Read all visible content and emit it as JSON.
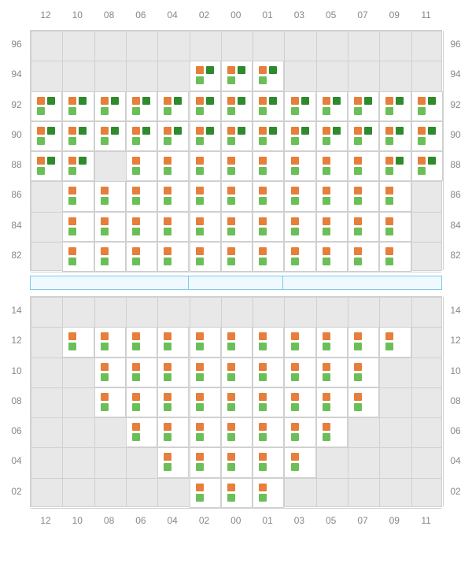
{
  "layout": {
    "cell_w": 40.3,
    "cell_h": 38.25,
    "cols": 13,
    "rows": 8,
    "col_labels": [
      "12",
      "10",
      "08",
      "06",
      "04",
      "02",
      "00",
      "01",
      "03",
      "05",
      "07",
      "09",
      "11"
    ],
    "top_row_labels": [
      "96",
      "94",
      "92",
      "90",
      "88",
      "86",
      "84",
      "82"
    ],
    "bot_row_labels": [
      "14",
      "12",
      "10",
      "08",
      "06",
      "04",
      "02"
    ],
    "bot_rows": 7
  },
  "colors": {
    "orange": "#e67e3c",
    "green_dark": "#2d8a2d",
    "green_light": "#6bbf59",
    "cell_bg": "#ffffff",
    "grid_bg": "#e8e8e8",
    "grid_line": "#d0d0d0",
    "label": "#888888",
    "midbar_bg": "#f0f9ff",
    "midbar_border": "#7dc9ed"
  },
  "midbar_splits": [
    0.385,
    0.615
  ],
  "top_grid": [
    [
      "-",
      "-",
      "-",
      "-",
      "-",
      "-",
      "-",
      "-",
      "-",
      "-",
      "-",
      "-",
      "-"
    ],
    [
      "-",
      "-",
      "-",
      "-",
      "-",
      "B",
      "B",
      "B",
      "-",
      "-",
      "-",
      "-",
      "-"
    ],
    [
      "B",
      "B",
      "B",
      "B",
      "B",
      "B",
      "B",
      "B",
      "B",
      "B",
      "B",
      "B",
      "B"
    ],
    [
      "B",
      "B",
      "B",
      "B",
      "B",
      "B",
      "B",
      "B",
      "B",
      "B",
      "B",
      "B",
      "B"
    ],
    [
      "B",
      "B",
      "-",
      "A",
      "A",
      "A",
      "A",
      "A",
      "A",
      "A",
      "A",
      "B",
      "B"
    ],
    [
      "-",
      "A",
      "A",
      "A",
      "A",
      "A",
      "A",
      "A",
      "A",
      "A",
      "A",
      "A",
      "-"
    ],
    [
      "-",
      "A",
      "A",
      "A",
      "A",
      "A",
      "A",
      "A",
      "A",
      "A",
      "A",
      "A",
      "-"
    ],
    [
      "-",
      "A",
      "A",
      "A",
      "A",
      "A",
      "A",
      "A",
      "A",
      "A",
      "A",
      "A",
      "-"
    ]
  ],
  "bot_grid": [
    [
      "-",
      "-",
      "-",
      "-",
      "-",
      "-",
      "-",
      "-",
      "-",
      "-",
      "-",
      "-",
      "-"
    ],
    [
      "-",
      "A",
      "A",
      "A",
      "A",
      "A",
      "A",
      "A",
      "A",
      "A",
      "A",
      "A",
      "-"
    ],
    [
      "-",
      "-",
      "A",
      "A",
      "A",
      "A",
      "A",
      "A",
      "A",
      "A",
      "A",
      "-",
      "-"
    ],
    [
      "-",
      "-",
      "A",
      "A",
      "A",
      "A",
      "A",
      "A",
      "A",
      "A",
      "A",
      "-",
      "-"
    ],
    [
      "-",
      "-",
      "-",
      "A",
      "A",
      "A",
      "A",
      "A",
      "A",
      "A",
      "-",
      "-",
      "-"
    ],
    [
      "-",
      "-",
      "-",
      "-",
      "A",
      "A",
      "A",
      "A",
      "A",
      "-",
      "-",
      "-",
      "-"
    ],
    [
      "-",
      "-",
      "-",
      "-",
      "-",
      "A",
      "A",
      "A",
      "-",
      "-",
      "-",
      "-",
      "-"
    ]
  ],
  "cell_types": {
    "A": {
      "pattern": 2,
      "dots": [
        "orange",
        "green_light"
      ]
    },
    "B": {
      "pattern": 3,
      "dots": [
        "orange",
        "green_dark",
        "green_light"
      ]
    }
  }
}
